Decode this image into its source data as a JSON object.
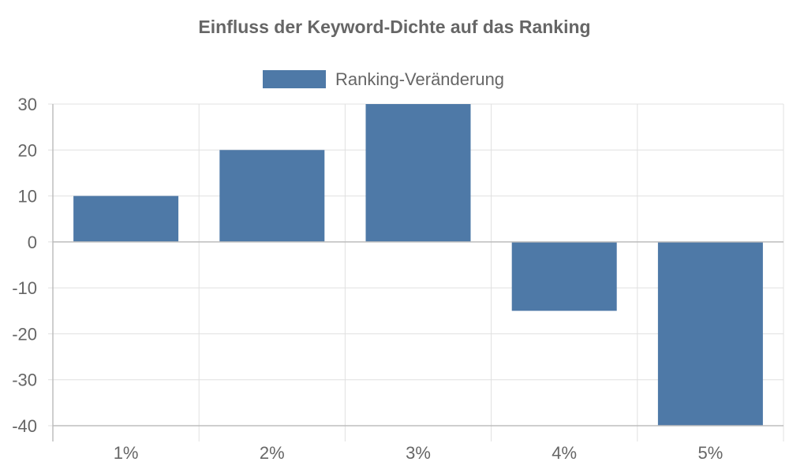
{
  "chart_data": {
    "type": "bar",
    "title": "Einfluss der Keyword-Dichte auf das Ranking",
    "categories": [
      "1%",
      "2%",
      "3%",
      "4%",
      "5%"
    ],
    "series": [
      {
        "name": "Ranking-Veränderung",
        "values": [
          10,
          20,
          30,
          -15,
          -40
        ]
      }
    ],
    "ylim": [
      -40,
      30
    ],
    "yticks": [
      30,
      20,
      10,
      0,
      -10,
      -20,
      -30,
      -40
    ],
    "grid": true,
    "legend_position": "top-center",
    "colors": {
      "bar": "#4e79a7",
      "text": "#666666",
      "grid": "#e0e0e0"
    }
  }
}
